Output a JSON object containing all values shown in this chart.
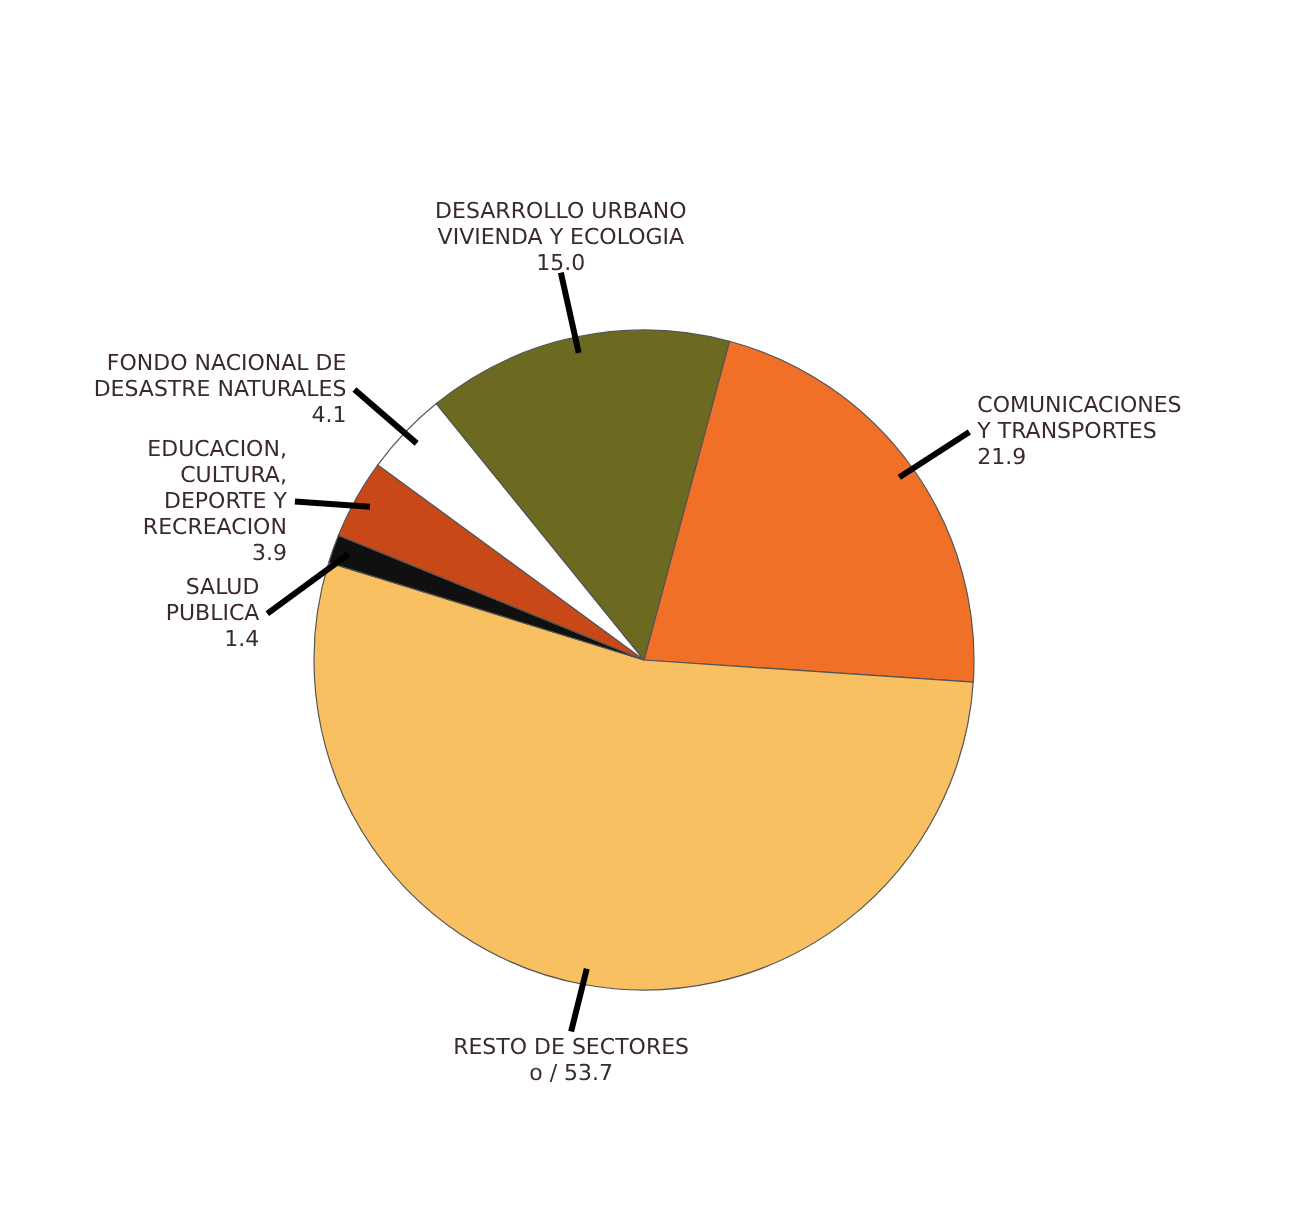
{
  "chart_data": {
    "type": "pie",
    "categories": [
      "COMUNICACIONES\nY TRANSPORTES",
      "RESTO DE SECTORES",
      "SALUD\nPUBLICA",
      "EDUCACION,\nCULTURA,\nDEPORTE Y\nRECREACION",
      "FONDO NACIONAL DE\nDESASTRE NATURALES",
      "DESARROLLO URBANO\nVIVIENDA Y ECOLOGIA"
    ],
    "values": [
      21.9,
      53.7,
      1.4,
      3.9,
      4.1,
      15.0
    ],
    "colors": [
      "#f07028",
      "#f8c060",
      "#101010",
      "#c84818",
      "#ffffff",
      "#6b6a20"
    ],
    "value_labels": [
      "21.9",
      "o / 53.7",
      "1.4",
      "3.9",
      "4.1",
      "15.0"
    ]
  }
}
